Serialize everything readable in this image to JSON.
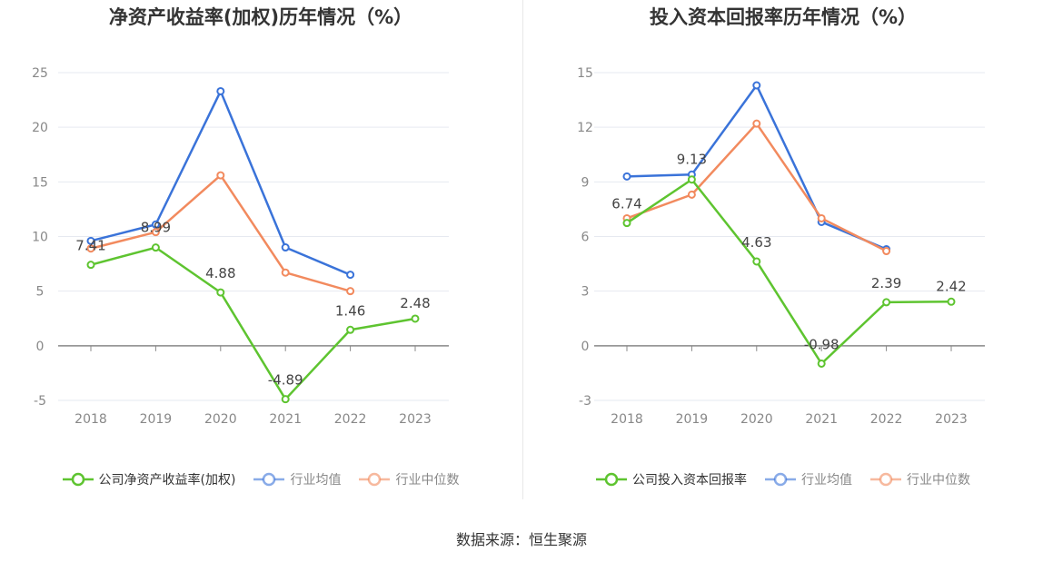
{
  "source": "数据来源：恒生聚源",
  "chart_data": [
    {
      "type": "line",
      "title": "净资产收益率(加权)历年情况（%）",
      "categories": [
        "2018",
        "2019",
        "2020",
        "2021",
        "2022",
        "2023"
      ],
      "ylim": [
        -5,
        25
      ],
      "yticks": [
        -5,
        0,
        5,
        10,
        15,
        20,
        25
      ],
      "legend_position": "bottom",
      "series": [
        {
          "name": "公司净资产收益率(加权)",
          "color": "#5ec430",
          "labeled": true,
          "values": [
            7.41,
            8.99,
            4.88,
            -4.89,
            1.46,
            2.48
          ],
          "labels": [
            "7.41",
            "8.99",
            "4.88",
            "-4.89",
            "1.46",
            "2.48"
          ]
        },
        {
          "name": "行业均值",
          "color": "#3a73d9",
          "values": [
            9.6,
            11.1,
            23.3,
            9.0,
            6.5,
            null
          ]
        },
        {
          "name": "行业中位数",
          "color": "#f28a5e",
          "values": [
            8.9,
            10.4,
            15.6,
            6.7,
            5.0,
            null
          ]
        }
      ]
    },
    {
      "type": "line",
      "title": "投入资本回报率历年情况（%）",
      "categories": [
        "2018",
        "2019",
        "2020",
        "2021",
        "2022",
        "2023"
      ],
      "ylim": [
        -3,
        15
      ],
      "yticks": [
        -3,
        0,
        3,
        6,
        9,
        12,
        15
      ],
      "legend_position": "bottom",
      "series": [
        {
          "name": "公司投入资本回报率",
          "color": "#5ec430",
          "labeled": true,
          "values": [
            6.74,
            9.13,
            4.63,
            -0.98,
            2.39,
            2.42
          ],
          "labels": [
            "6.74",
            "9.13",
            "4.63",
            "-0.98",
            "2.39",
            "2.42"
          ]
        },
        {
          "name": "行业均值",
          "color": "#3a73d9",
          "values": [
            9.3,
            9.4,
            14.3,
            6.8,
            5.3,
            null
          ]
        },
        {
          "name": "行业中位数",
          "color": "#f28a5e",
          "values": [
            7.0,
            8.3,
            12.2,
            7.0,
            5.2,
            null
          ]
        }
      ]
    }
  ]
}
